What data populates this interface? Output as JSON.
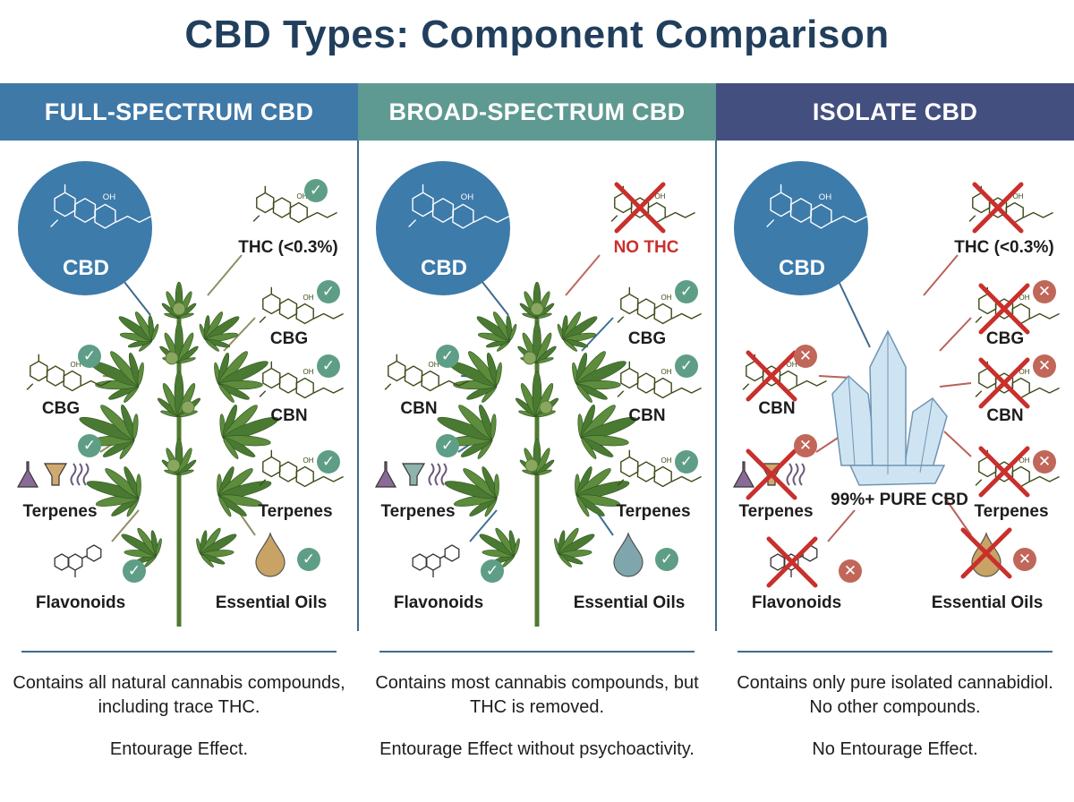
{
  "title": "CBD Types: Component Comparison",
  "colors": {
    "check": "#5f9e86",
    "excluded_badge": "#c0675a",
    "cross": "#c9302c",
    "no_thc_text": "#c9302c",
    "cbd_circle": "#3d7bab"
  },
  "columns": [
    {
      "title": "FULL-SPECTRUM CBD",
      "header_color": "#3f79a8",
      "center": "cannabis-plant",
      "center_label": "",
      "cbd_label": "CBD",
      "line_color": "#8f8f62",
      "items": [
        {
          "label": "THC (<0.3%)",
          "icon": "molecule",
          "status": "included"
        },
        {
          "label": "CBG",
          "icon": "molecule",
          "status": "included"
        },
        {
          "label": "CBN",
          "icon": "molecule",
          "status": "included"
        },
        {
          "label": "Terpenes",
          "icon": "molecule",
          "status": "included"
        },
        {
          "label": "Essential Oils",
          "icon": "oil-drop",
          "status": "included"
        },
        {
          "label": "CBG",
          "icon": "molecule",
          "status": "included"
        },
        {
          "label": "Terpenes",
          "icon": "terpene-set",
          "status": "included"
        },
        {
          "label": "Flavonoids",
          "icon": "flavonoid",
          "status": "included"
        }
      ],
      "description": "Contains all natural cannabis compounds, including trace THC.",
      "effect": "Entourage Effect."
    },
    {
      "title": "BROAD-SPECTRUM CBD",
      "header_color": "#5e9a91",
      "center": "cannabis-plant",
      "center_label": "",
      "cbd_label": "CBD",
      "line_color": "#3f6f97",
      "items": [
        {
          "label": "NO THC",
          "icon": "molecule",
          "status": "removed"
        },
        {
          "label": "CBG",
          "icon": "molecule",
          "status": "included"
        },
        {
          "label": "CBN",
          "icon": "molecule",
          "status": "included"
        },
        {
          "label": "Terpenes",
          "icon": "molecule",
          "status": "included"
        },
        {
          "label": "Essential Oils",
          "icon": "oil-drop",
          "status": "included"
        },
        {
          "label": "CBN",
          "icon": "molecule",
          "status": "included"
        },
        {
          "label": "Terpenes",
          "icon": "terpene-set",
          "status": "included"
        },
        {
          "label": "Flavonoids",
          "icon": "flavonoid",
          "status": "included"
        }
      ],
      "description": "Contains most cannabis compounds, but THC is removed.",
      "effect": "Entourage Effect without psychoactivity."
    },
    {
      "title": "ISOLATE CBD",
      "header_color": "#434f7f",
      "center": "crystal",
      "center_label": "99%+ PURE CBD",
      "cbd_label": "CBD",
      "line_color": "#b9625a",
      "items": [
        {
          "label": "THC (<0.3%)",
          "icon": "molecule",
          "status": "removed"
        },
        {
          "label": "CBG",
          "icon": "molecule",
          "status": "excluded"
        },
        {
          "label": "CBN",
          "icon": "molecule",
          "status": "excluded"
        },
        {
          "label": "Terpenes",
          "icon": "molecule",
          "status": "excluded"
        },
        {
          "label": "Essential Oils",
          "icon": "oil-drop",
          "status": "excluded"
        },
        {
          "label": "CBN",
          "icon": "molecule",
          "status": "excluded"
        },
        {
          "label": "Terpenes",
          "icon": "terpene-set",
          "status": "excluded"
        },
        {
          "label": "Flavonoids",
          "icon": "flavonoid",
          "status": "excluded"
        }
      ],
      "description": "Contains only pure isolated cannabidiol. No other compounds.",
      "effect": "No Entourage Effect."
    }
  ]
}
